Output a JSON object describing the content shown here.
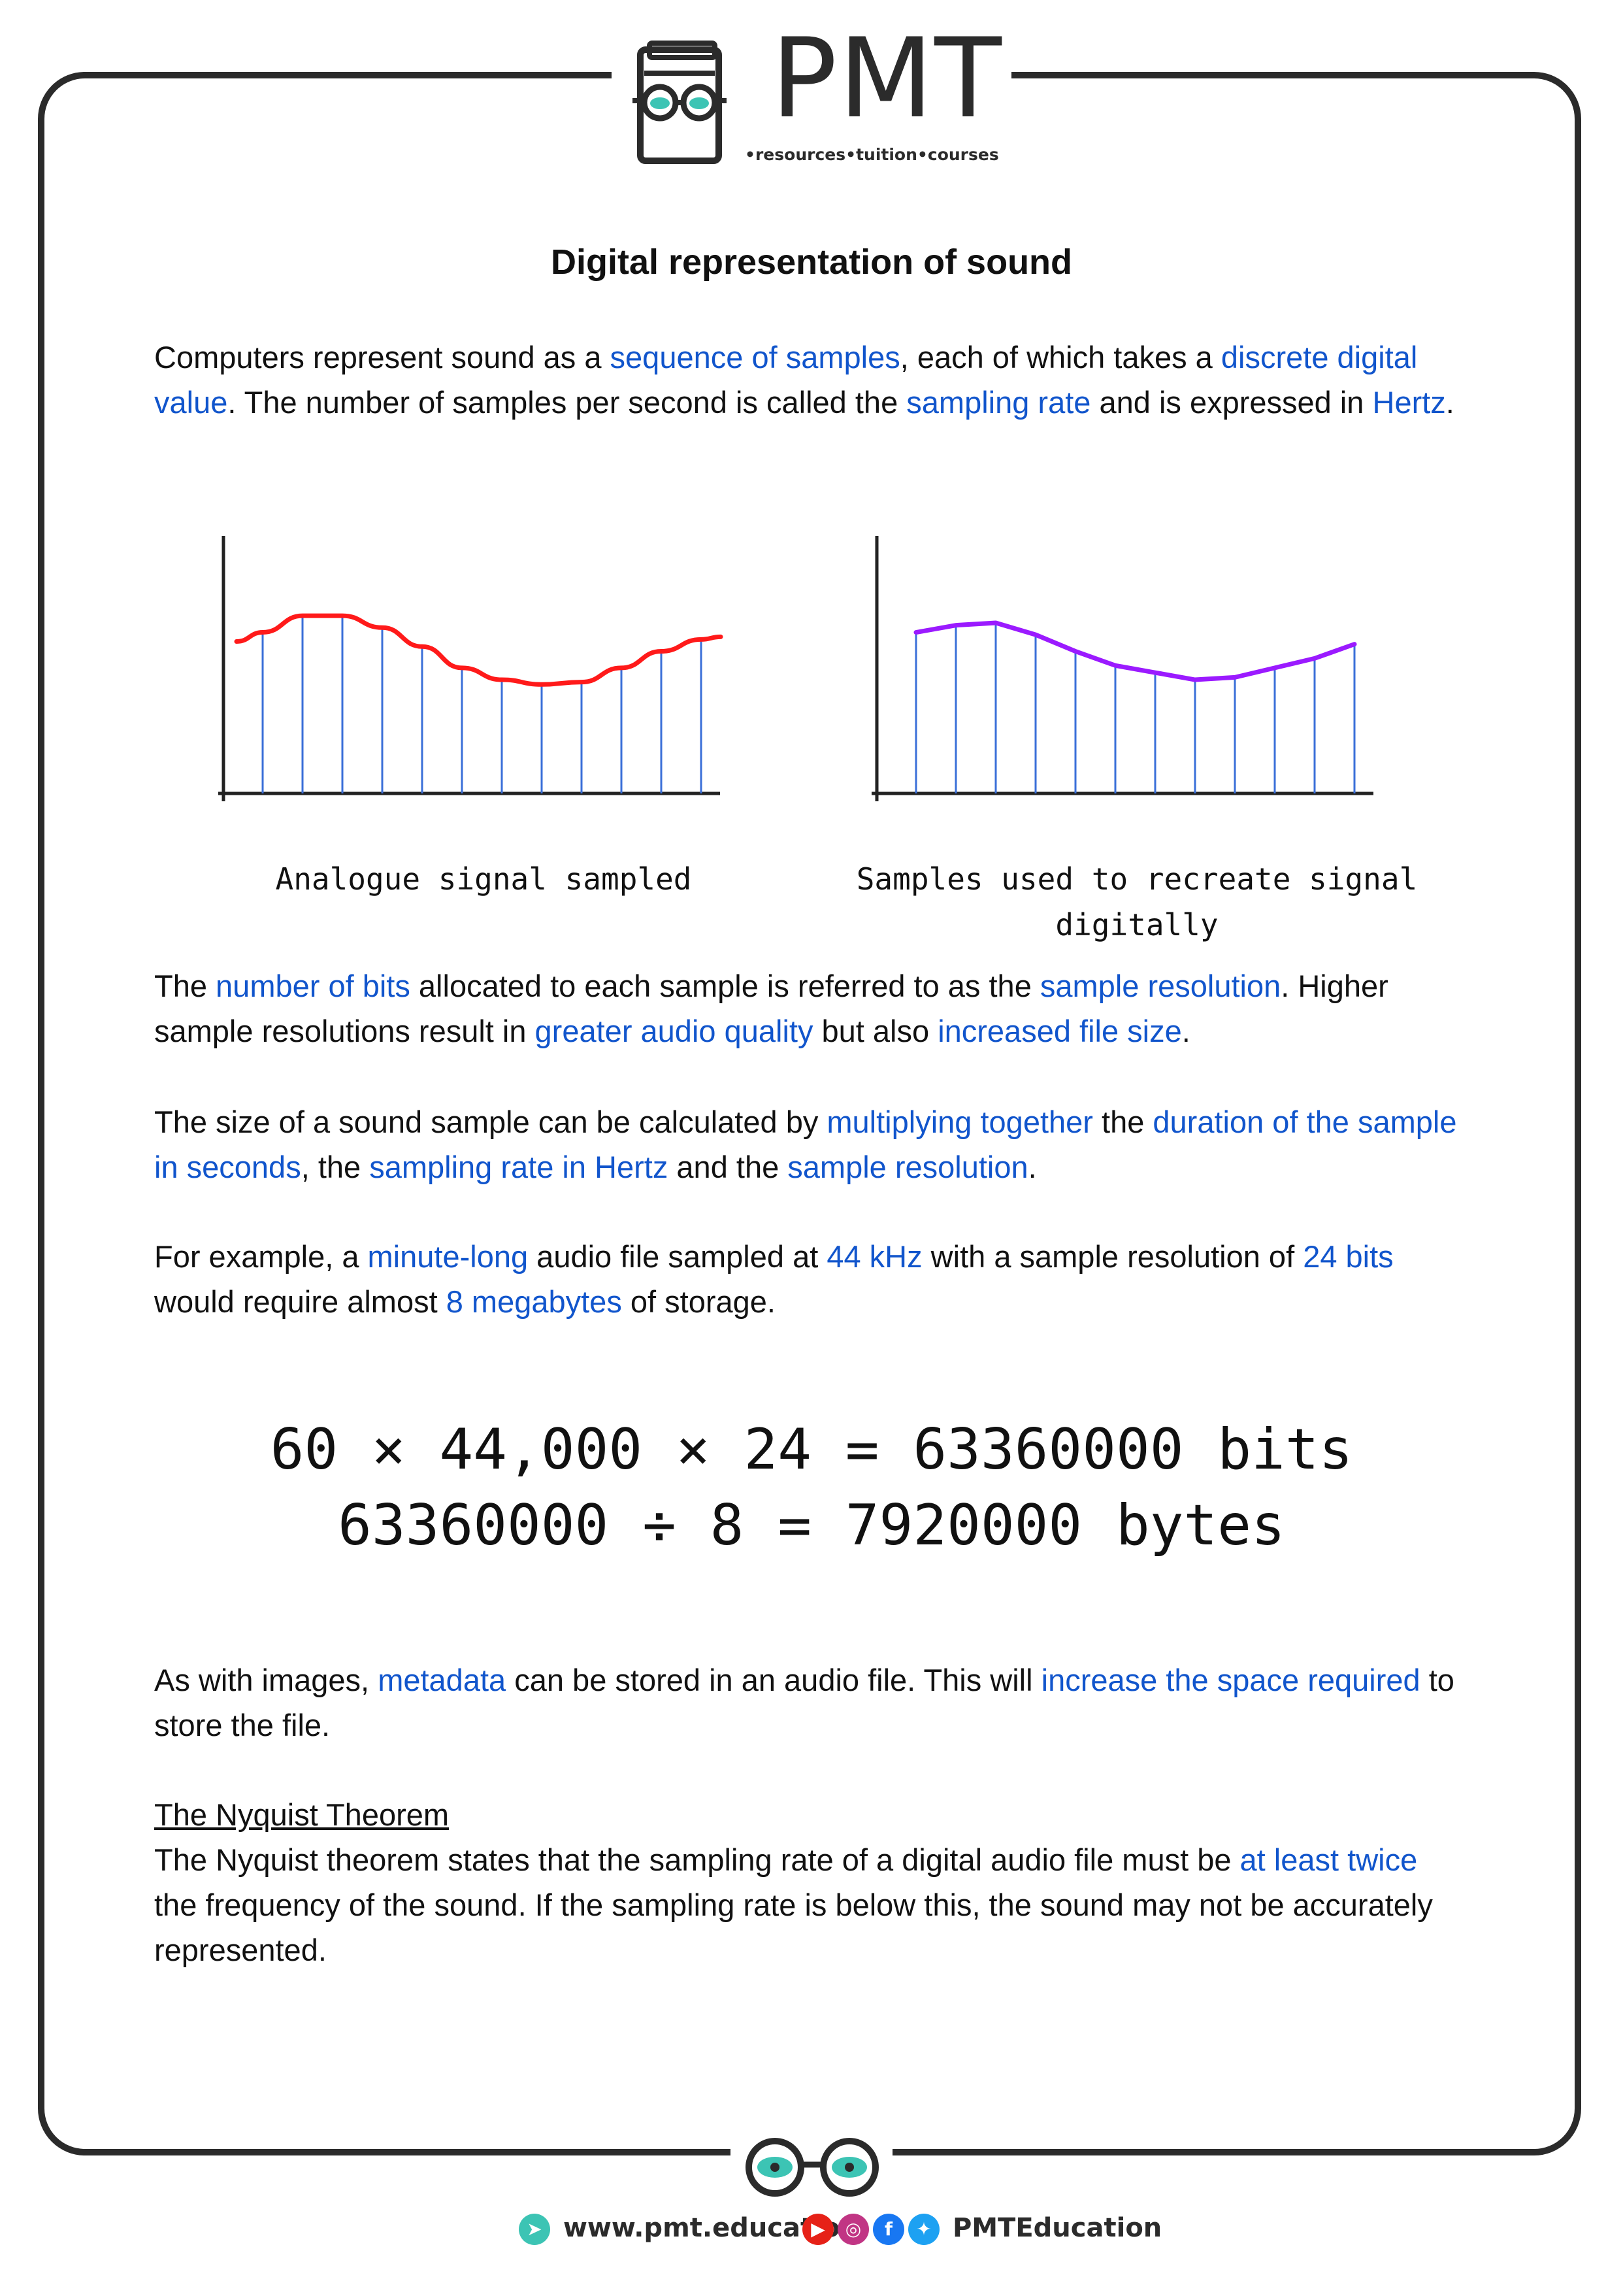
{
  "header": {
    "logo_text": "PMT",
    "tagline": "•resources•tuition•courses"
  },
  "title": "Digital representation of sound",
  "para1": {
    "t1": "Computers represent sound as a ",
    "h1": "sequence of samples",
    "t2": ", each of which takes a ",
    "h2": "discrete digital value",
    "t3": ". The number of samples per second is called the ",
    "h3": "sampling rate",
    "t4": " and is expressed in ",
    "h4": "Hertz",
    "t5": "."
  },
  "figures": {
    "left_caption": "Analogue signal sampled",
    "right_caption": "Samples used to recreate signal\ndigitally",
    "analogue_color": "#ff1a1a",
    "digital_color": "#9b1aff",
    "sample_line_color": "#3a6fd8",
    "chart_data": [
      {
        "type": "line",
        "title": "",
        "xlabel": "",
        "ylabel": "",
        "sample_count": 12,
        "description_values": [
          0.68,
          0.75,
          0.75,
          0.7,
          0.62,
          0.53,
          0.48,
          0.46,
          0.47,
          0.53,
          0.6,
          0.65
        ]
      },
      {
        "type": "line",
        "title": "",
        "xlabel": "",
        "ylabel": "",
        "sample_count": 12,
        "description_values": [
          0.68,
          0.71,
          0.72,
          0.67,
          0.6,
          0.54,
          0.51,
          0.48,
          0.49,
          0.53,
          0.57,
          0.63
        ]
      }
    ]
  },
  "para2": {
    "t1": "The ",
    "h1": "number of bits",
    "t2": " allocated to each sample is referred to as the ",
    "h2": "sample resolution",
    "t3": ". Higher sample resolutions result in ",
    "h3": "greater audio quality",
    "t4": " but also ",
    "h4": "increased file size",
    "t5": "."
  },
  "para3": {
    "t1": "The size of a sound sample can be calculated by ",
    "h1": "multiplying together",
    "t2": " the ",
    "h2": "duration of the sample in seconds",
    "t3": ", the ",
    "h3": "sampling rate in Hertz",
    "t4": " and the ",
    "h4": "sample resolution",
    "t5": "."
  },
  "para4": {
    "t1": "For example, a ",
    "h1": "minute-long",
    "t2": " audio file sampled at ",
    "h2": "44 kHz",
    "t3": " with a sample resolution of ",
    "h3": "24 bits",
    "t4": " would require almost ",
    "h4": "8 megabytes",
    "t5": " of storage."
  },
  "equations": {
    "line1": "60 × 44,000 × 24 = 63360000 bits",
    "line2": "63360000 ÷ 8 = 7920000 bytes"
  },
  "para5": {
    "t1": "As with images, ",
    "h1": "metadata",
    "t2": " can be stored in an audio file. This will ",
    "h2": "increase the space required",
    "t3": " to store the file."
  },
  "nyquist": {
    "heading": "The Nyquist Theorem",
    "t1": "The Nyquist theorem states that the sampling rate of a digital audio file must be ",
    "h1": "at least twice",
    "t2": " the frequency of the sound. If the sampling rate is below this, the sound may not be accurately represented."
  },
  "footer": {
    "website": "www.pmt.education",
    "social": "PMTEducation"
  },
  "colors": {
    "highlight": "#1155cc",
    "frame": "#2b2b2b",
    "teal": "#3cc4b4",
    "youtube": "#e62117",
    "instagram": "#c13584",
    "facebook": "#1877f2",
    "twitter": "#1da1f2"
  }
}
